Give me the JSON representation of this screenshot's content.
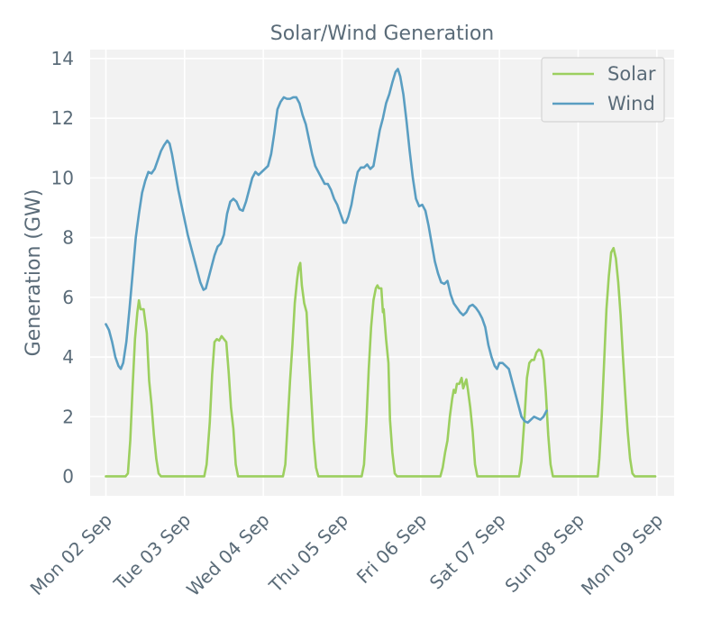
{
  "chart_data": {
    "type": "line",
    "title": "Solar/Wind Generation",
    "xlabel": "",
    "ylabel": "Generation (GW)",
    "ylim": [
      -0.65,
      14.3
    ],
    "xlim": [
      -0.2,
      7.22
    ],
    "yticks": [
      0,
      2,
      4,
      6,
      8,
      10,
      12,
      14
    ],
    "ytick_labels": [
      "0",
      "2",
      "4",
      "6",
      "8",
      "10",
      "12",
      "14"
    ],
    "xticks": [
      0,
      1,
      2,
      3,
      4,
      5,
      6,
      7
    ],
    "xtick_labels": [
      "Mon 02 Sep",
      "Tue 03 Sep",
      "Wed 04 Sep",
      "Thu 05 Sep",
      "Fri 06 Sep",
      "Sat 07 Sep",
      "Sun 08 Sep",
      "Mon 09 Sep"
    ],
    "grid": true,
    "legend_position": "top-right",
    "series": [
      {
        "name": "Solar",
        "color": "#9ccf5f",
        "points": [
          [
            0.0,
            0
          ],
          [
            0.05,
            0
          ],
          [
            0.1,
            0
          ],
          [
            0.15,
            0
          ],
          [
            0.2,
            0
          ],
          [
            0.25,
            0
          ],
          [
            0.28,
            0.1
          ],
          [
            0.31,
            1.2
          ],
          [
            0.34,
            3.0
          ],
          [
            0.37,
            4.6
          ],
          [
            0.4,
            5.5
          ],
          [
            0.42,
            5.9
          ],
          [
            0.44,
            5.6
          ],
          [
            0.48,
            5.6
          ],
          [
            0.52,
            4.8
          ],
          [
            0.55,
            3.2
          ],
          [
            0.58,
            2.4
          ],
          [
            0.61,
            1.4
          ],
          [
            0.64,
            0.6
          ],
          [
            0.67,
            0.1
          ],
          [
            0.7,
            0
          ],
          [
            0.8,
            0
          ],
          [
            0.9,
            0
          ],
          [
            1.0,
            0
          ],
          [
            1.1,
            0
          ],
          [
            1.25,
            0
          ],
          [
            1.28,
            0.4
          ],
          [
            1.32,
            1.8
          ],
          [
            1.35,
            3.4
          ],
          [
            1.38,
            4.5
          ],
          [
            1.41,
            4.6
          ],
          [
            1.44,
            4.55
          ],
          [
            1.47,
            4.7
          ],
          [
            1.5,
            4.6
          ],
          [
            1.53,
            4.5
          ],
          [
            1.56,
            3.5
          ],
          [
            1.59,
            2.3
          ],
          [
            1.62,
            1.6
          ],
          [
            1.65,
            0.4
          ],
          [
            1.68,
            0
          ],
          [
            1.8,
            0
          ],
          [
            1.9,
            0
          ],
          [
            2.0,
            0
          ],
          [
            2.1,
            0
          ],
          [
            2.25,
            0
          ],
          [
            2.28,
            0.4
          ],
          [
            2.31,
            1.8
          ],
          [
            2.34,
            3.2
          ],
          [
            2.37,
            4.4
          ],
          [
            2.4,
            5.8
          ],
          [
            2.43,
            6.6
          ],
          [
            2.45,
            7.0
          ],
          [
            2.47,
            7.15
          ],
          [
            2.49,
            6.4
          ],
          [
            2.52,
            5.8
          ],
          [
            2.55,
            5.5
          ],
          [
            2.58,
            4.0
          ],
          [
            2.61,
            2.6
          ],
          [
            2.64,
            1.2
          ],
          [
            2.67,
            0.3
          ],
          [
            2.7,
            0
          ],
          [
            2.8,
            0
          ],
          [
            2.9,
            0
          ],
          [
            3.0,
            0
          ],
          [
            3.1,
            0
          ],
          [
            3.25,
            0
          ],
          [
            3.28,
            0.4
          ],
          [
            3.31,
            1.8
          ],
          [
            3.34,
            3.6
          ],
          [
            3.37,
            5.0
          ],
          [
            3.4,
            5.9
          ],
          [
            3.43,
            6.3
          ],
          [
            3.45,
            6.4
          ],
          [
            3.47,
            6.3
          ],
          [
            3.5,
            6.3
          ],
          [
            3.52,
            5.5
          ],
          [
            3.53,
            5.6
          ],
          [
            3.56,
            4.6
          ],
          [
            3.59,
            3.8
          ],
          [
            3.61,
            1.9
          ],
          [
            3.64,
            0.8
          ],
          [
            3.67,
            0.1
          ],
          [
            3.7,
            0
          ],
          [
            3.8,
            0
          ],
          [
            3.9,
            0
          ],
          [
            4.0,
            0
          ],
          [
            4.1,
            0
          ],
          [
            4.25,
            0
          ],
          [
            4.28,
            0.3
          ],
          [
            4.31,
            0.8
          ],
          [
            4.34,
            1.2
          ],
          [
            4.37,
            2.0
          ],
          [
            4.4,
            2.6
          ],
          [
            4.42,
            2.9
          ],
          [
            4.44,
            2.8
          ],
          [
            4.46,
            3.1
          ],
          [
            4.49,
            3.1
          ],
          [
            4.52,
            3.3
          ],
          [
            4.54,
            2.95
          ],
          [
            4.56,
            3.1
          ],
          [
            4.58,
            3.25
          ],
          [
            4.6,
            2.9
          ],
          [
            4.63,
            2.3
          ],
          [
            4.66,
            1.5
          ],
          [
            4.69,
            0.4
          ],
          [
            4.72,
            0
          ],
          [
            4.8,
            0
          ],
          [
            4.9,
            0
          ],
          [
            5.0,
            0
          ],
          [
            5.1,
            0
          ],
          [
            5.25,
            0
          ],
          [
            5.28,
            0.5
          ],
          [
            5.32,
            2.0
          ],
          [
            5.35,
            3.3
          ],
          [
            5.38,
            3.8
          ],
          [
            5.41,
            3.9
          ],
          [
            5.44,
            3.9
          ],
          [
            5.47,
            4.15
          ],
          [
            5.5,
            4.25
          ],
          [
            5.53,
            4.2
          ],
          [
            5.56,
            3.9
          ],
          [
            5.59,
            2.8
          ],
          [
            5.62,
            1.4
          ],
          [
            5.65,
            0.4
          ],
          [
            5.68,
            0
          ],
          [
            5.8,
            0
          ],
          [
            5.9,
            0
          ],
          [
            6.0,
            0
          ],
          [
            6.1,
            0
          ],
          [
            6.25,
            0
          ],
          [
            6.27,
            0.6
          ],
          [
            6.3,
            2.0
          ],
          [
            6.33,
            3.8
          ],
          [
            6.36,
            5.6
          ],
          [
            6.39,
            6.7
          ],
          [
            6.42,
            7.5
          ],
          [
            6.45,
            7.65
          ],
          [
            6.48,
            7.3
          ],
          [
            6.51,
            6.5
          ],
          [
            6.54,
            5.4
          ],
          [
            6.57,
            4.0
          ],
          [
            6.6,
            2.7
          ],
          [
            6.63,
            1.5
          ],
          [
            6.66,
            0.6
          ],
          [
            6.69,
            0.1
          ],
          [
            6.72,
            0
          ],
          [
            6.8,
            0
          ],
          [
            6.9,
            0
          ],
          [
            6.98,
            0
          ]
        ]
      },
      {
        "name": "Wind",
        "color": "#5a9ec2",
        "points": [
          [
            0.0,
            5.1
          ],
          [
            0.04,
            4.9
          ],
          [
            0.08,
            4.5
          ],
          [
            0.12,
            4.0
          ],
          [
            0.16,
            3.7
          ],
          [
            0.19,
            3.6
          ],
          [
            0.22,
            3.8
          ],
          [
            0.26,
            4.5
          ],
          [
            0.3,
            5.6
          ],
          [
            0.34,
            6.8
          ],
          [
            0.38,
            8.0
          ],
          [
            0.42,
            8.8
          ],
          [
            0.46,
            9.5
          ],
          [
            0.5,
            9.9
          ],
          [
            0.54,
            10.2
          ],
          [
            0.58,
            10.15
          ],
          [
            0.62,
            10.3
          ],
          [
            0.66,
            10.6
          ],
          [
            0.7,
            10.9
          ],
          [
            0.74,
            11.1
          ],
          [
            0.78,
            11.25
          ],
          [
            0.81,
            11.15
          ],
          [
            0.84,
            10.8
          ],
          [
            0.88,
            10.2
          ],
          [
            0.92,
            9.6
          ],
          [
            0.96,
            9.1
          ],
          [
            1.0,
            8.6
          ],
          [
            1.04,
            8.1
          ],
          [
            1.08,
            7.7
          ],
          [
            1.12,
            7.3
          ],
          [
            1.16,
            6.9
          ],
          [
            1.2,
            6.5
          ],
          [
            1.24,
            6.25
          ],
          [
            1.27,
            6.3
          ],
          [
            1.3,
            6.6
          ],
          [
            1.34,
            7.0
          ],
          [
            1.38,
            7.4
          ],
          [
            1.42,
            7.7
          ],
          [
            1.46,
            7.8
          ],
          [
            1.5,
            8.1
          ],
          [
            1.54,
            8.8
          ],
          [
            1.58,
            9.2
          ],
          [
            1.62,
            9.3
          ],
          [
            1.66,
            9.2
          ],
          [
            1.7,
            8.95
          ],
          [
            1.74,
            8.9
          ],
          [
            1.78,
            9.2
          ],
          [
            1.82,
            9.6
          ],
          [
            1.86,
            10.0
          ],
          [
            1.9,
            10.2
          ],
          [
            1.94,
            10.1
          ],
          [
            1.98,
            10.2
          ],
          [
            2.02,
            10.3
          ],
          [
            2.06,
            10.4
          ],
          [
            2.1,
            10.8
          ],
          [
            2.14,
            11.5
          ],
          [
            2.18,
            12.3
          ],
          [
            2.22,
            12.55
          ],
          [
            2.26,
            12.7
          ],
          [
            2.3,
            12.65
          ],
          [
            2.34,
            12.65
          ],
          [
            2.38,
            12.7
          ],
          [
            2.42,
            12.7
          ],
          [
            2.46,
            12.5
          ],
          [
            2.5,
            12.1
          ],
          [
            2.54,
            11.8
          ],
          [
            2.58,
            11.3
          ],
          [
            2.62,
            10.8
          ],
          [
            2.66,
            10.4
          ],
          [
            2.7,
            10.2
          ],
          [
            2.74,
            10.0
          ],
          [
            2.78,
            9.8
          ],
          [
            2.82,
            9.8
          ],
          [
            2.86,
            9.6
          ],
          [
            2.9,
            9.3
          ],
          [
            2.94,
            9.1
          ],
          [
            2.98,
            8.8
          ],
          [
            3.02,
            8.5
          ],
          [
            3.05,
            8.5
          ],
          [
            3.08,
            8.7
          ],
          [
            3.12,
            9.1
          ],
          [
            3.16,
            9.7
          ],
          [
            3.2,
            10.2
          ],
          [
            3.24,
            10.35
          ],
          [
            3.28,
            10.35
          ],
          [
            3.32,
            10.45
          ],
          [
            3.36,
            10.3
          ],
          [
            3.4,
            10.4
          ],
          [
            3.44,
            11.0
          ],
          [
            3.48,
            11.6
          ],
          [
            3.52,
            12.0
          ],
          [
            3.56,
            12.5
          ],
          [
            3.6,
            12.8
          ],
          [
            3.64,
            13.2
          ],
          [
            3.68,
            13.55
          ],
          [
            3.71,
            13.65
          ],
          [
            3.74,
            13.4
          ],
          [
            3.78,
            12.8
          ],
          [
            3.82,
            11.9
          ],
          [
            3.86,
            10.9
          ],
          [
            3.9,
            10.0
          ],
          [
            3.94,
            9.3
          ],
          [
            3.98,
            9.05
          ],
          [
            4.02,
            9.1
          ],
          [
            4.06,
            8.9
          ],
          [
            4.1,
            8.4
          ],
          [
            4.14,
            7.8
          ],
          [
            4.18,
            7.2
          ],
          [
            4.22,
            6.8
          ],
          [
            4.26,
            6.5
          ],
          [
            4.3,
            6.45
          ],
          [
            4.34,
            6.55
          ],
          [
            4.38,
            6.1
          ],
          [
            4.42,
            5.8
          ],
          [
            4.46,
            5.65
          ],
          [
            4.5,
            5.5
          ],
          [
            4.54,
            5.4
          ],
          [
            4.58,
            5.5
          ],
          [
            4.62,
            5.7
          ],
          [
            4.66,
            5.75
          ],
          [
            4.7,
            5.65
          ],
          [
            4.74,
            5.5
          ],
          [
            4.78,
            5.3
          ],
          [
            4.82,
            5.0
          ],
          [
            4.86,
            4.4
          ],
          [
            4.9,
            4.0
          ],
          [
            4.94,
            3.7
          ],
          [
            4.97,
            3.6
          ],
          [
            5.0,
            3.8
          ],
          [
            5.04,
            3.8
          ],
          [
            5.08,
            3.7
          ],
          [
            5.12,
            3.6
          ],
          [
            5.16,
            3.2
          ],
          [
            5.2,
            2.8
          ],
          [
            5.24,
            2.4
          ],
          [
            5.28,
            2.0
          ],
          [
            5.32,
            1.85
          ],
          [
            5.36,
            1.8
          ],
          [
            5.4,
            1.9
          ],
          [
            5.44,
            2.0
          ],
          [
            5.48,
            1.95
          ],
          [
            5.52,
            1.9
          ],
          [
            5.56,
            2.0
          ],
          [
            5.6,
            2.2
          ]
        ]
      }
    ]
  }
}
